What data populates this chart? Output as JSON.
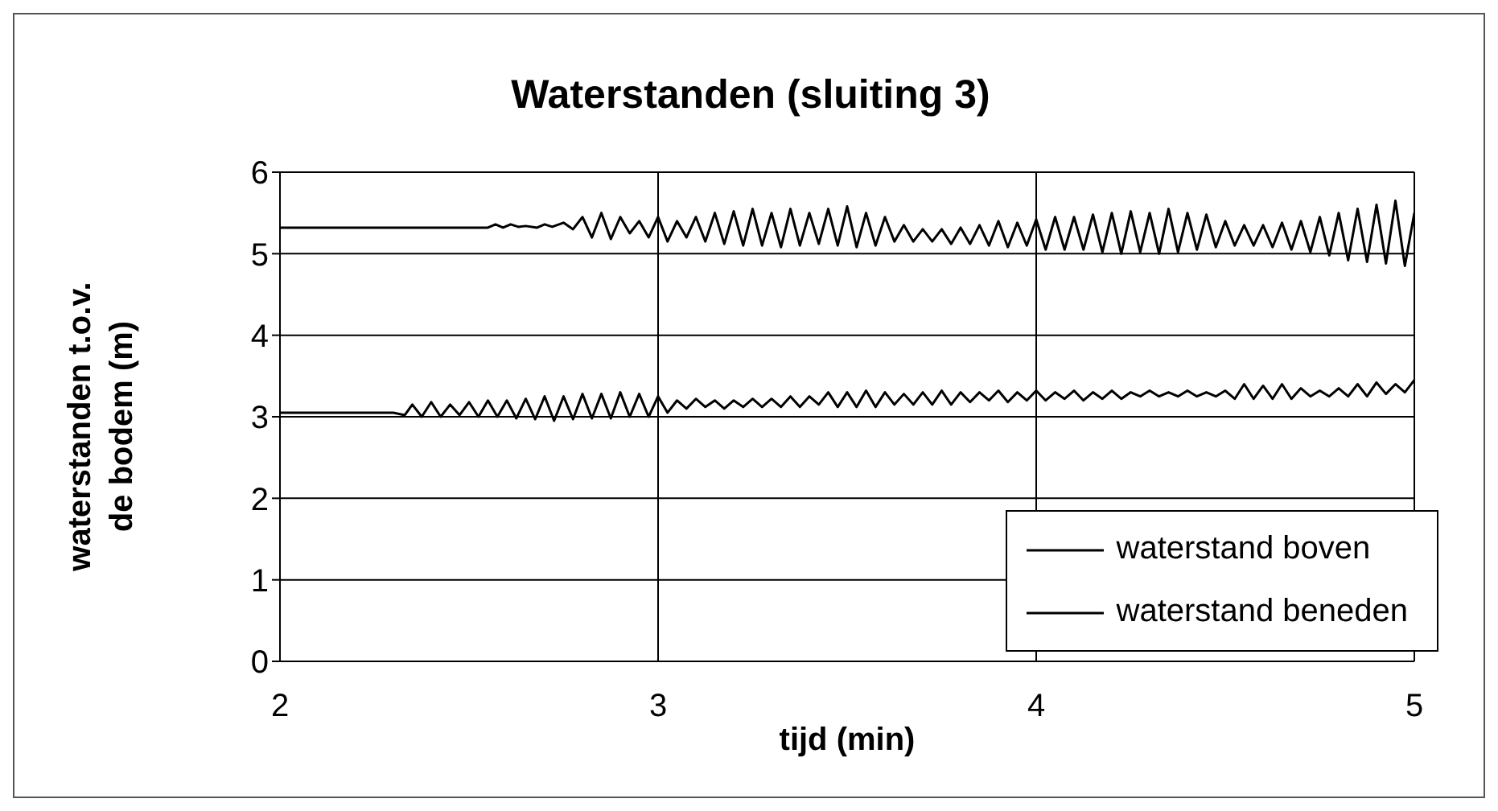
{
  "chart_data": {
    "type": "line",
    "title": "Waterstanden (sluiting 3)",
    "xlabel": "tijd (min)",
    "ylabel": "waterstanden t.o.v. de bodem (m)",
    "xlim": [
      2,
      5
    ],
    "xticks": [
      2,
      3,
      4,
      5
    ],
    "ylim": [
      0,
      6
    ],
    "yticks": [
      0,
      1,
      2,
      3,
      4,
      5,
      6
    ],
    "grid": true,
    "legend": "bottom right",
    "marker": "none",
    "line_style": "solid",
    "series": [
      {
        "name": "waterstand boven",
        "color": "#000000",
        "x": [
          2,
          2.55,
          2.57,
          2.59,
          2.61,
          2.63,
          2.65,
          2.68,
          2.7,
          2.72,
          2.75,
          2.775,
          2.8,
          2.825,
          2.85,
          2.875,
          2.9,
          2.925,
          2.95,
          2.975,
          3.0,
          3.025,
          3.05,
          3.075,
          3.1,
          3.125,
          3.15,
          3.175,
          3.2,
          3.225,
          3.25,
          3.275,
          3.3,
          3.325,
          3.35,
          3.375,
          3.4,
          3.425,
          3.45,
          3.475,
          3.5,
          3.525,
          3.55,
          3.575,
          3.6,
          3.625,
          3.65,
          3.675,
          3.7,
          3.725,
          3.75,
          3.775,
          3.8,
          3.825,
          3.85,
          3.875,
          3.9,
          3.925,
          3.95,
          3.975,
          4.0,
          4.025,
          4.05,
          4.075,
          4.1,
          4.125,
          4.15,
          4.175,
          4.2,
          4.225,
          4.25,
          4.275,
          4.3,
          4.325,
          4.35,
          4.375,
          4.4,
          4.425,
          4.45,
          4.475,
          4.5,
          4.525,
          4.55,
          4.575,
          4.6,
          4.625,
          4.65,
          4.675,
          4.7,
          4.725,
          4.75,
          4.775,
          4.8,
          4.825,
          4.85,
          4.875,
          4.9,
          4.925,
          4.95,
          4.975,
          5.0
        ],
        "values": [
          5.32,
          5.32,
          5.36,
          5.32,
          5.36,
          5.33,
          5.34,
          5.32,
          5.36,
          5.33,
          5.38,
          5.3,
          5.45,
          5.2,
          5.5,
          5.18,
          5.45,
          5.25,
          5.4,
          5.2,
          5.45,
          5.15,
          5.4,
          5.2,
          5.45,
          5.15,
          5.5,
          5.12,
          5.52,
          5.1,
          5.55,
          5.1,
          5.5,
          5.08,
          5.55,
          5.1,
          5.5,
          5.12,
          5.55,
          5.1,
          5.58,
          5.08,
          5.5,
          5.1,
          5.45,
          5.15,
          5.35,
          5.15,
          5.3,
          5.15,
          5.3,
          5.12,
          5.32,
          5.12,
          5.35,
          5.1,
          5.4,
          5.08,
          5.38,
          5.1,
          5.42,
          5.05,
          5.45,
          5.05,
          5.45,
          5.05,
          5.48,
          5.02,
          5.5,
          5.0,
          5.52,
          5.02,
          5.5,
          5.0,
          5.55,
          5.02,
          5.5,
          5.05,
          5.48,
          5.08,
          5.4,
          5.1,
          5.35,
          5.1,
          5.35,
          5.08,
          5.38,
          5.05,
          5.4,
          5.02,
          5.45,
          4.98,
          5.5,
          4.92,
          5.55,
          4.9,
          5.6,
          4.88,
          5.65,
          4.85,
          5.5
        ]
      },
      {
        "name": "waterstand beneden",
        "color": "#000000",
        "x": [
          2,
          2.3,
          2.33,
          2.35,
          2.375,
          2.4,
          2.425,
          2.45,
          2.475,
          2.5,
          2.525,
          2.55,
          2.575,
          2.6,
          2.625,
          2.65,
          2.675,
          2.7,
          2.725,
          2.75,
          2.775,
          2.8,
          2.825,
          2.85,
          2.875,
          2.9,
          2.925,
          2.95,
          2.975,
          3.0,
          3.025,
          3.05,
          3.075,
          3.1,
          3.125,
          3.15,
          3.175,
          3.2,
          3.225,
          3.25,
          3.275,
          3.3,
          3.325,
          3.35,
          3.375,
          3.4,
          3.425,
          3.45,
          3.475,
          3.5,
          3.525,
          3.55,
          3.575,
          3.6,
          3.625,
          3.65,
          3.675,
          3.7,
          3.725,
          3.75,
          3.775,
          3.8,
          3.825,
          3.85,
          3.875,
          3.9,
          3.925,
          3.95,
          3.975,
          4.0,
          4.025,
          4.05,
          4.075,
          4.1,
          4.125,
          4.15,
          4.175,
          4.2,
          4.225,
          4.25,
          4.275,
          4.3,
          4.325,
          4.35,
          4.375,
          4.4,
          4.425,
          4.45,
          4.475,
          4.5,
          4.525,
          4.55,
          4.575,
          4.6,
          4.625,
          4.65,
          4.675,
          4.7,
          4.725,
          4.75,
          4.775,
          4.8,
          4.825,
          4.85,
          4.875,
          4.9,
          4.925,
          4.95,
          4.975,
          5.0
        ],
        "values": [
          3.05,
          3.05,
          3.02,
          3.15,
          3.0,
          3.18,
          3.0,
          3.15,
          3.02,
          3.18,
          3.0,
          3.2,
          3.0,
          3.2,
          2.98,
          3.22,
          2.97,
          3.25,
          2.95,
          3.25,
          2.97,
          3.28,
          2.98,
          3.28,
          2.98,
          3.3,
          3.0,
          3.28,
          3.0,
          3.25,
          3.05,
          3.2,
          3.1,
          3.22,
          3.12,
          3.2,
          3.1,
          3.2,
          3.12,
          3.22,
          3.12,
          3.22,
          3.12,
          3.25,
          3.12,
          3.25,
          3.15,
          3.3,
          3.12,
          3.3,
          3.12,
          3.32,
          3.12,
          3.3,
          3.15,
          3.28,
          3.15,
          3.3,
          3.15,
          3.32,
          3.15,
          3.3,
          3.18,
          3.3,
          3.2,
          3.32,
          3.18,
          3.3,
          3.2,
          3.32,
          3.2,
          3.3,
          3.22,
          3.32,
          3.2,
          3.3,
          3.22,
          3.32,
          3.22,
          3.3,
          3.25,
          3.32,
          3.25,
          3.3,
          3.25,
          3.32,
          3.25,
          3.3,
          3.25,
          3.32,
          3.22,
          3.4,
          3.22,
          3.38,
          3.22,
          3.4,
          3.22,
          3.35,
          3.25,
          3.32,
          3.25,
          3.35,
          3.25,
          3.4,
          3.25,
          3.42,
          3.28,
          3.4,
          3.3,
          3.45
        ]
      }
    ]
  }
}
